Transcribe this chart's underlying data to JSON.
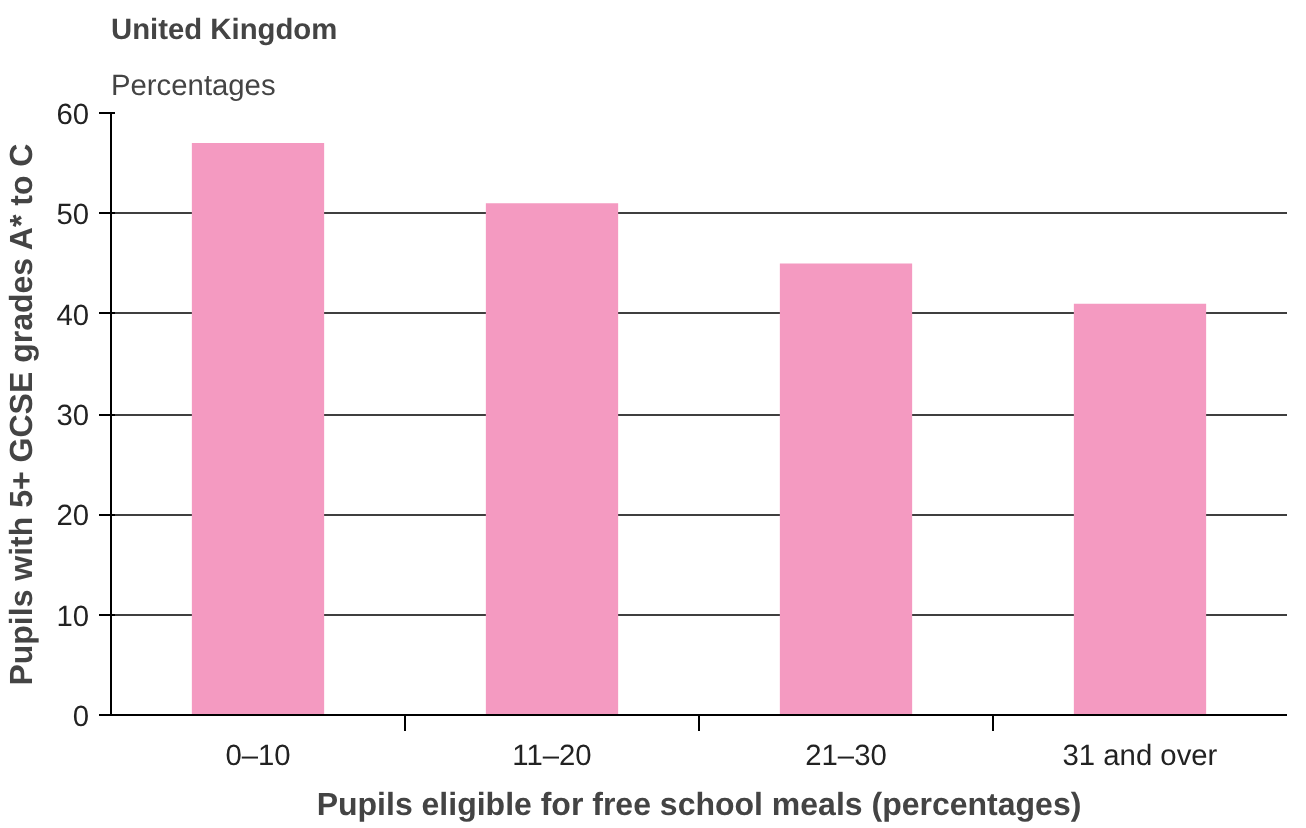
{
  "chart_data": {
    "type": "bar",
    "title": "United Kingdom",
    "subtitle": "Percentages",
    "xlabel": "Pupils eligible for free school meals (percentages)",
    "ylabel": "Pupils with 5+ GCSE grades A* to C",
    "categories": [
      "0–10",
      "11–20",
      "21–30",
      "31 and over"
    ],
    "values": [
      57,
      51,
      45,
      41
    ],
    "color": "#f49ac1",
    "ylim": [
      0,
      60
    ],
    "yticks": [
      0,
      10,
      20,
      30,
      40,
      50,
      60
    ],
    "grid": "y"
  }
}
